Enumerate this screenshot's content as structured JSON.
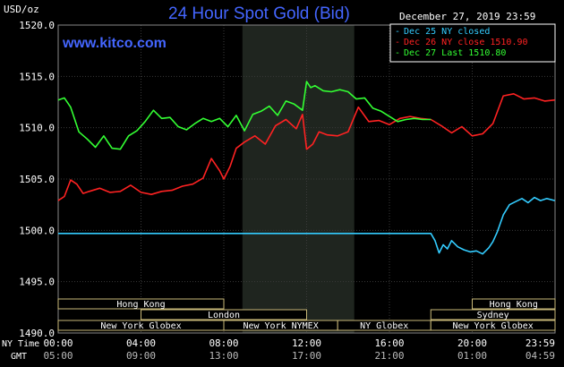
{
  "header": {
    "title": "24 Hour Spot Gold (Bid)",
    "units": "USD/oz",
    "date": "December 27, 2019 23:59",
    "site": "www.kitco.com"
  },
  "legend": [
    {
      "label": "Dec 25 NY closed",
      "color": "#33ccff"
    },
    {
      "label": "Dec 26 NY close 1510.90",
      "color": "#ff2222"
    },
    {
      "label": "Dec 27 Last 1510.80",
      "color": "#33ff33"
    }
  ],
  "markets": [
    {
      "name": "Hong Kong",
      "start": 0,
      "end": 8
    },
    {
      "name": "London",
      "start": 4,
      "end": 12
    },
    {
      "name": "New York Globex",
      "start": 0,
      "end": 8
    },
    {
      "name": "New York NYMEX",
      "start": 8,
      "end": 13.5
    },
    {
      "name": "NY Globex",
      "start": 13.5,
      "end": 18
    },
    {
      "name": "Hong Kong",
      "start": 20,
      "end": 24
    },
    {
      "name": "Sydney",
      "start": 18,
      "end": 24
    },
    {
      "name": "New York Globex",
      "start": 18,
      "end": 24
    }
  ],
  "axis_labels": {
    "ny_time": "NY Time",
    "gmt": "GMT"
  },
  "chart_data": {
    "type": "line",
    "title": "24 Hour Spot Gold (Bid)",
    "ylabel": "USD/oz",
    "ylim": [
      1490.0,
      1520.0
    ],
    "yticks": [
      1490.0,
      1495.0,
      1500.0,
      1505.0,
      1510.0,
      1515.0,
      1520.0
    ],
    "ytick_labels": [
      "1490.0",
      "1495.0",
      "1500.0",
      "1505.0",
      "1510.0",
      "1515.0",
      "1520.0"
    ],
    "xlim": [
      0,
      24
    ],
    "xticks": [
      0,
      4,
      8,
      12,
      16,
      20,
      24
    ],
    "xtick_labels_ny": [
      "00:00",
      "04:00",
      "08:00",
      "12:00",
      "16:00",
      "20:00",
      "23:59"
    ],
    "xtick_labels_gmt": [
      "05:00",
      "09:00",
      "13:00",
      "17:00",
      "21:00",
      "01:00",
      "04:59"
    ],
    "shaded_region_hours": [
      8.9,
      14.3
    ],
    "series": [
      {
        "name": "Dec 25 NY closed",
        "color": "#33ccff",
        "x": [
          0,
          18,
          18.2,
          18.4,
          18.6,
          18.8,
          19.0,
          19.3,
          19.6,
          19.9,
          20.2,
          20.5,
          20.8,
          21.0,
          21.2,
          21.5,
          21.8,
          22.1,
          22.4,
          22.7,
          23.0,
          23.3,
          23.6,
          23.99
        ],
        "y": [
          1499.7,
          1499.7,
          1499.0,
          1497.8,
          1498.6,
          1498.2,
          1499.0,
          1498.4,
          1498.1,
          1497.9,
          1498.0,
          1497.7,
          1498.3,
          1498.9,
          1499.8,
          1501.5,
          1502.5,
          1502.8,
          1503.1,
          1502.7,
          1503.2,
          1502.9,
          1503.1,
          1502.9
        ]
      },
      {
        "name": "Dec 26 NY close 1510.90",
        "color": "#ff2222",
        "x": [
          0,
          0.3,
          0.6,
          0.9,
          1.2,
          1.5,
          2.0,
          2.5,
          3.0,
          3.5,
          4.0,
          4.5,
          5.0,
          5.5,
          6.0,
          6.5,
          7.0,
          7.4,
          7.8,
          8.0,
          8.3,
          8.6,
          9.0,
          9.5,
          10.0,
          10.5,
          11.0,
          11.5,
          11.8,
          12.0,
          12.3,
          12.6,
          13.0,
          13.5,
          14.0,
          14.5,
          15.0,
          15.5,
          16.0,
          16.5,
          17.0,
          17.5,
          18.0,
          18.5,
          19.0,
          19.5,
          20.0,
          20.5,
          21.0,
          21.5,
          22.0,
          22.5,
          23.0,
          23.5,
          23.99
        ],
        "y": [
          1502.9,
          1503.3,
          1504.9,
          1504.5,
          1503.6,
          1503.8,
          1504.1,
          1503.7,
          1503.8,
          1504.4,
          1503.7,
          1503.5,
          1503.8,
          1503.9,
          1504.3,
          1504.5,
          1505.1,
          1507.0,
          1505.8,
          1505.0,
          1506.2,
          1508.0,
          1508.6,
          1509.2,
          1508.4,
          1510.2,
          1510.8,
          1509.9,
          1511.3,
          1507.9,
          1508.4,
          1509.6,
          1509.3,
          1509.2,
          1509.6,
          1512.0,
          1510.6,
          1510.7,
          1510.3,
          1510.9,
          1511.1,
          1510.9,
          1510.8,
          1510.2,
          1509.5,
          1510.1,
          1509.2,
          1509.4,
          1510.4,
          1513.1,
          1513.3,
          1512.8,
          1512.9,
          1512.6,
          1512.7
        ]
      },
      {
        "name": "Dec 27 Last 1510.80",
        "color": "#33ff33",
        "x": [
          0,
          0.3,
          0.6,
          1.0,
          1.4,
          1.8,
          2.2,
          2.6,
          3.0,
          3.4,
          3.8,
          4.2,
          4.6,
          5.0,
          5.4,
          5.8,
          6.2,
          6.6,
          7.0,
          7.4,
          7.8,
          8.2,
          8.6,
          9.0,
          9.4,
          9.8,
          10.2,
          10.6,
          11.0,
          11.4,
          11.8,
          12.0,
          12.2,
          12.4,
          12.8,
          13.2,
          13.6,
          14.0,
          14.4,
          14.8,
          15.2,
          15.6,
          16.0,
          16.4,
          16.8,
          17.2,
          17.6,
          18.0
        ],
        "y": [
          1512.7,
          1512.9,
          1512.0,
          1509.6,
          1508.9,
          1508.1,
          1509.2,
          1508.0,
          1507.9,
          1509.2,
          1509.7,
          1510.6,
          1511.7,
          1510.9,
          1511.0,
          1510.1,
          1509.8,
          1510.4,
          1510.9,
          1510.6,
          1510.9,
          1510.1,
          1511.2,
          1509.7,
          1511.3,
          1511.6,
          1512.1,
          1511.2,
          1512.6,
          1512.3,
          1511.7,
          1514.5,
          1513.9,
          1514.1,
          1513.6,
          1513.5,
          1513.7,
          1513.5,
          1512.8,
          1512.9,
          1511.9,
          1511.6,
          1511.1,
          1510.6,
          1510.8,
          1510.9,
          1510.8,
          1510.8
        ]
      }
    ]
  }
}
